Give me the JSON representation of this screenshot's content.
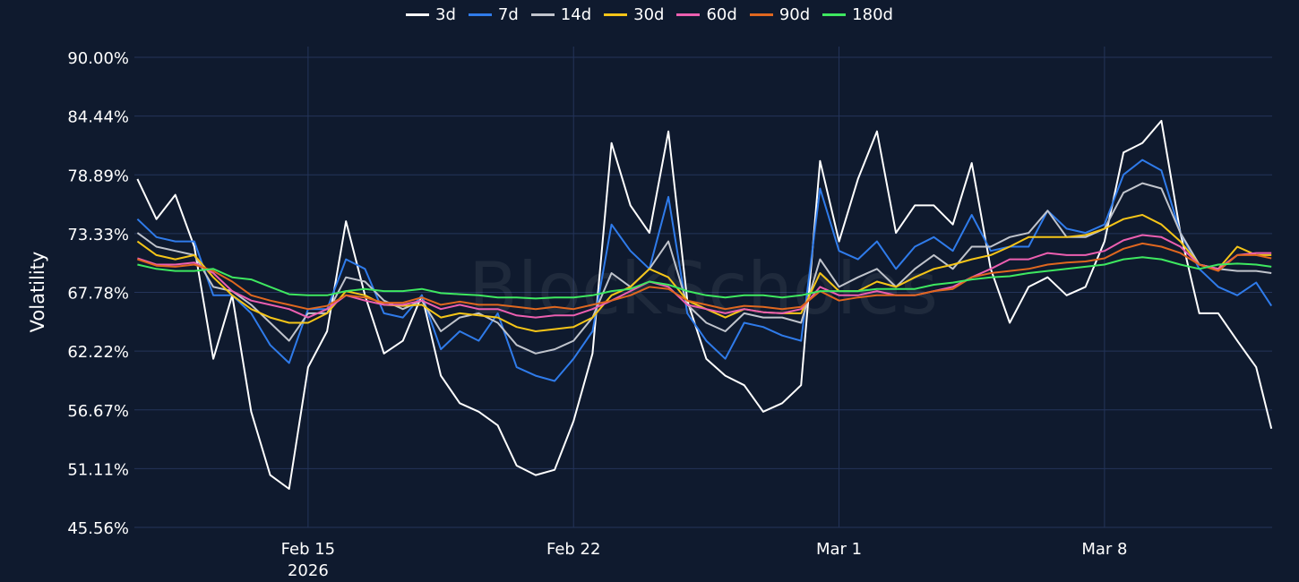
{
  "chart_data": {
    "type": "line",
    "title": "",
    "ylabel": "Volatility",
    "xlabel": "",
    "x_unit": "days since 2026-02-15",
    "xlim": [
      -4.58,
      25.42
    ],
    "ylim": [
      45.56,
      90.0
    ],
    "yticks": [
      "90.00%",
      "84.44%",
      "78.89%",
      "73.33%",
      "67.78%",
      "62.22%",
      "56.67%",
      "51.11%",
      "45.56%"
    ],
    "ytick_values": [
      90.0,
      84.44,
      78.89,
      73.33,
      67.78,
      62.22,
      56.67,
      51.11,
      45.56
    ],
    "xticks": [
      {
        "value": 0,
        "label": "Feb 15",
        "sublabel": "2026"
      },
      {
        "value": 7,
        "label": "Feb 22",
        "sublabel": ""
      },
      {
        "value": 14,
        "label": "Mar 1",
        "sublabel": ""
      },
      {
        "value": 21,
        "label": "Mar 8",
        "sublabel": ""
      }
    ],
    "grid": true,
    "legend_position": "top-center",
    "watermark": "BlockScholes",
    "x": [
      -4.5,
      -4,
      -3.5,
      -3,
      -2.5,
      -2,
      -1.5,
      -1,
      -0.5,
      0,
      0.5,
      1,
      1.5,
      2,
      2.5,
      3,
      3.5,
      4,
      4.5,
      5,
      5.5,
      6,
      6.5,
      7,
      7.5,
      8,
      8.5,
      9,
      9.5,
      10,
      10.5,
      11,
      11.5,
      12,
      12.5,
      13,
      13.5,
      14,
      14.5,
      15,
      15.5,
      16,
      16.5,
      17,
      17.5,
      18,
      18.5,
      19,
      19.5,
      20,
      20.5,
      21,
      21.5,
      22,
      22.5,
      23,
      23.5,
      24,
      24.5,
      25,
      25.4
    ],
    "series": [
      {
        "name": "3d",
        "color": "#ffffff",
        "values": [
          78.5,
          74.7,
          77,
          72.1,
          61.5,
          67.5,
          56.5,
          50.5,
          49.2,
          60.7,
          64.1,
          74.5,
          67.5,
          62,
          63.2,
          67.5,
          59.9,
          57.3,
          56.5,
          55.2,
          51.4,
          50.5,
          51,
          55.6,
          62,
          81.9,
          76,
          73.4,
          83,
          67,
          61.5,
          59.9,
          59,
          56.5,
          57.3,
          59,
          80.2,
          72.6,
          78.5,
          83,
          73.4,
          76,
          76,
          74.2,
          80,
          70,
          64.9,
          68.3,
          69.2,
          67.5,
          68.3,
          72.6,
          81,
          81.9,
          84,
          73.4,
          65.8,
          65.8,
          63.2,
          60.7,
          54.9
        ]
      },
      {
        "name": "7d",
        "color": "#2f7bea",
        "values": [
          74.7,
          73,
          72.6,
          72.6,
          67.5,
          67.5,
          65.8,
          62.8,
          61.1,
          66.2,
          66.2,
          70.9,
          70,
          65.8,
          65.4,
          67.5,
          62.4,
          64.1,
          63.2,
          65.8,
          60.7,
          59.9,
          59.4,
          61.5,
          64.1,
          74.2,
          71.7,
          70,
          76.8,
          65.8,
          63.2,
          61.5,
          64.9,
          64.5,
          63.7,
          63.2,
          77.6,
          71.7,
          70.9,
          72.6,
          70,
          72.1,
          73,
          71.7,
          75.1,
          71.7,
          72.1,
          72.1,
          75.5,
          73.8,
          73.4,
          74.2,
          78.9,
          80.3,
          79.3,
          73.4,
          70,
          68.3,
          67.5,
          68.7,
          66.5
        ]
      },
      {
        "name": "14d",
        "color": "#c0c4cc",
        "values": [
          73.4,
          72.1,
          71.7,
          71.3,
          68.3,
          67.9,
          66.6,
          64.9,
          63.2,
          65.8,
          65.8,
          69.2,
          68.8,
          67,
          66.2,
          67,
          64.1,
          65.4,
          65.8,
          64.9,
          62.8,
          62,
          62.4,
          63.2,
          65.4,
          69.6,
          68.3,
          70,
          72.6,
          66.6,
          64.9,
          64.1,
          65.8,
          65.4,
          65.4,
          64.9,
          70.9,
          68.3,
          69.2,
          70,
          68.3,
          70,
          71.3,
          70,
          72.1,
          72.1,
          73,
          73.4,
          75.5,
          73,
          73,
          73.8,
          77.2,
          78.1,
          77.6,
          73.4,
          70.4,
          70,
          69.8,
          69.8,
          69.6
        ]
      },
      {
        "name": "30d",
        "color": "#f5c518",
        "values": [
          72.6,
          71.3,
          70.9,
          71.3,
          69.2,
          67.5,
          66.2,
          65.4,
          64.9,
          64.9,
          65.8,
          67.9,
          67.5,
          66.6,
          66.5,
          66.6,
          65.4,
          65.8,
          65.6,
          65.4,
          64.5,
          64.1,
          64.3,
          64.5,
          65.4,
          67.5,
          68.3,
          70,
          69.2,
          67,
          66.2,
          65.4,
          66.2,
          65.9,
          65.8,
          65.8,
          69.6,
          67.9,
          67.9,
          68.8,
          68.3,
          69.2,
          70,
          70.4,
          70.9,
          71.3,
          72.1,
          73,
          73,
          73,
          73.2,
          73.8,
          74.7,
          75.1,
          74.2,
          72.6,
          70.4,
          70,
          72.1,
          71.3,
          71.3
        ]
      },
      {
        "name": "60d",
        "color": "#ec5fb0",
        "values": [
          71,
          70.4,
          70.4,
          70.6,
          69.6,
          67.9,
          67,
          66.6,
          66.2,
          65.4,
          66.2,
          67.5,
          67,
          66.6,
          66.6,
          67,
          66.2,
          66.6,
          66.2,
          66.2,
          65.6,
          65.4,
          65.6,
          65.6,
          66.2,
          67,
          67.9,
          68.8,
          68.3,
          66.6,
          66.2,
          65.8,
          66.2,
          65.9,
          65.8,
          66.2,
          68.3,
          67.5,
          67.5,
          67.9,
          67.5,
          67.5,
          67.9,
          68.3,
          69.2,
          70,
          70.9,
          70.9,
          71.5,
          71.3,
          71.3,
          71.7,
          72.7,
          73.2,
          73,
          72.1,
          70.4,
          70,
          71.3,
          71.5,
          71.5
        ]
      },
      {
        "name": "90d",
        "color": "#e0671f",
        "values": [
          70.9,
          70.3,
          70.2,
          70.4,
          69.8,
          68.8,
          67.5,
          67,
          66.6,
          66.2,
          66.5,
          67.5,
          67.3,
          66.8,
          66.8,
          67.3,
          66.6,
          66.9,
          66.6,
          66.6,
          66.4,
          66.2,
          66.4,
          66.2,
          66.6,
          67,
          67.5,
          68.3,
          68.1,
          67,
          66.6,
          66.2,
          66.5,
          66.4,
          66.2,
          66.4,
          67.9,
          67,
          67.3,
          67.5,
          67.5,
          67.5,
          67.9,
          68.1,
          69.2,
          69.6,
          69.8,
          70,
          70.4,
          70.6,
          70.7,
          71,
          71.9,
          72.4,
          72.1,
          71.5,
          70.4,
          69.8,
          71.3,
          71.3,
          71
        ]
      },
      {
        "name": "180d",
        "color": "#3ee860",
        "values": [
          70.4,
          70,
          69.8,
          69.8,
          70,
          69.2,
          69,
          68.3,
          67.6,
          67.5,
          67.5,
          67.9,
          68.1,
          67.9,
          67.9,
          68.1,
          67.7,
          67.6,
          67.5,
          67.3,
          67.3,
          67.2,
          67.3,
          67.3,
          67.5,
          67.9,
          68.1,
          68.8,
          68.5,
          67.9,
          67.5,
          67.3,
          67.5,
          67.5,
          67.3,
          67.5,
          67.9,
          67.9,
          67.9,
          68.1,
          68.1,
          68.1,
          68.5,
          68.7,
          69,
          69.2,
          69.3,
          69.6,
          69.8,
          70,
          70.2,
          70.4,
          70.9,
          71.1,
          70.9,
          70.4,
          70,
          70.4,
          70.5,
          70.4,
          70.2
        ]
      }
    ]
  },
  "colors": {
    "background": "#0f1a2e",
    "grid": "#24345a"
  }
}
